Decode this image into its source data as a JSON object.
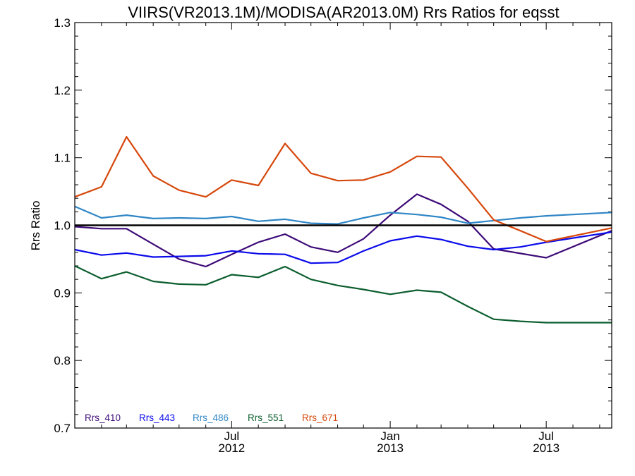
{
  "chart_data": {
    "type": "line",
    "title": "VIIRS(VR2013.1M)/MODISA(AR2013.0M)  Rrs Ratios for eqsst",
    "xlabel": "",
    "ylabel": "Rrs Ratio",
    "ylim": [
      0.7,
      1.3
    ],
    "xlim": [
      "2012-01-01",
      "2013-09-15"
    ],
    "x_ticks": [
      {
        "date": "2012-07-01",
        "label_line1": "Jul",
        "label_line2": "2012"
      },
      {
        "date": "2013-01-01",
        "label_line1": "Jan",
        "label_line2": "2013"
      },
      {
        "date": "2013-07-01",
        "label_line1": "Jul",
        "label_line2": "2013"
      }
    ],
    "y_ticks": [
      "0.7",
      "0.8",
      "0.9",
      "1.0",
      "1.1",
      "1.2",
      "1.3"
    ],
    "reference_line": 1.0,
    "grid": false,
    "legend_position": "bottom-left",
    "x": [
      "2012-01-01",
      "2012-02-01",
      "2012-03-01",
      "2012-04-01",
      "2012-05-01",
      "2012-06-01",
      "2012-07-01",
      "2012-08-01",
      "2012-09-01",
      "2012-10-01",
      "2012-11-01",
      "2012-12-01",
      "2013-01-01",
      "2013-02-01",
      "2013-03-01",
      "2013-04-01",
      "2013-05-01",
      "2013-06-01",
      "2013-07-01",
      "2013-07-15",
      "2013-08-01",
      "2013-09-15"
    ],
    "series": [
      {
        "name": "Rrs_410",
        "color": "#3d0a78",
        "x": [
          "2012-01-01",
          "2012-02-01",
          "2012-03-01",
          "2012-04-01",
          "2012-05-01",
          "2012-06-01",
          "2012-07-01",
          "2012-08-01",
          "2012-09-01",
          "2012-10-01",
          "2012-11-01",
          "2012-12-01",
          "2013-01-01",
          "2013-02-01",
          "2013-03-01",
          "2013-04-01",
          "2013-05-01",
          "2013-07-01",
          "2013-09-15"
        ],
        "values": [
          0.998,
          0.995,
          0.995,
          0.972,
          0.95,
          0.939,
          0.957,
          0.975,
          0.987,
          0.968,
          0.96,
          0.98,
          1.015,
          1.046,
          1.031,
          1.006,
          0.965,
          0.952,
          0.992
        ]
      },
      {
        "name": "Rrs_443",
        "color": "#0a0aeb",
        "x": [
          "2012-01-01",
          "2012-02-01",
          "2012-03-01",
          "2012-04-01",
          "2012-05-01",
          "2012-06-01",
          "2012-07-01",
          "2012-08-01",
          "2012-09-01",
          "2012-10-01",
          "2012-11-01",
          "2012-12-01",
          "2013-01-01",
          "2013-02-01",
          "2013-03-01",
          "2013-04-01",
          "2013-05-01",
          "2013-06-01",
          "2013-07-01",
          "2013-09-15"
        ],
        "values": [
          0.964,
          0.956,
          0.959,
          0.953,
          0.954,
          0.955,
          0.962,
          0.958,
          0.957,
          0.944,
          0.945,
          0.962,
          0.977,
          0.984,
          0.979,
          0.969,
          0.964,
          0.968,
          0.975,
          0.99
        ]
      },
      {
        "name": "Rrs_486",
        "color": "#2f86c6",
        "x": [
          "2012-01-01",
          "2012-02-01",
          "2012-03-01",
          "2012-04-01",
          "2012-05-01",
          "2012-06-01",
          "2012-07-01",
          "2012-08-01",
          "2012-09-01",
          "2012-10-01",
          "2012-11-01",
          "2012-12-01",
          "2013-01-01",
          "2013-02-01",
          "2013-03-01",
          "2013-04-01",
          "2013-05-01",
          "2013-06-01",
          "2013-07-01",
          "2013-09-15"
        ],
        "values": [
          1.028,
          1.011,
          1.015,
          1.01,
          1.011,
          1.01,
          1.013,
          1.006,
          1.009,
          1.003,
          1.002,
          1.011,
          1.019,
          1.016,
          1.012,
          1.003,
          1.007,
          1.011,
          1.014,
          1.019
        ]
      },
      {
        "name": "Rrs_551",
        "color": "#0b5e2e",
        "x": [
          "2012-01-01",
          "2012-02-01",
          "2012-03-01",
          "2012-04-01",
          "2012-05-01",
          "2012-06-01",
          "2012-07-01",
          "2012-08-01",
          "2012-09-01",
          "2012-10-01",
          "2012-11-01",
          "2012-12-01",
          "2013-01-01",
          "2013-02-01",
          "2013-03-01",
          "2013-04-01",
          "2013-05-01",
          "2013-06-01",
          "2013-07-01",
          "2013-09-15"
        ],
        "values": [
          0.94,
          0.921,
          0.931,
          0.917,
          0.913,
          0.912,
          0.927,
          0.923,
          0.939,
          0.92,
          0.911,
          0.905,
          0.898,
          0.904,
          0.901,
          0.88,
          0.861,
          0.858,
          0.856,
          0.856
        ]
      },
      {
        "name": "Rrs_671",
        "color": "#d6470b",
        "x": [
          "2012-01-01",
          "2012-02-01",
          "2012-03-01",
          "2012-04-01",
          "2012-05-01",
          "2012-06-01",
          "2012-07-01",
          "2012-08-01",
          "2012-09-01",
          "2012-10-01",
          "2012-11-01",
          "2012-12-01",
          "2013-01-01",
          "2013-02-01",
          "2013-03-01",
          "2013-04-01",
          "2013-05-01",
          "2013-06-01",
          "2013-07-01",
          "2013-09-15"
        ],
        "values": [
          1.042,
          1.057,
          1.131,
          1.073,
          1.052,
          1.042,
          1.067,
          1.059,
          1.121,
          1.077,
          1.066,
          1.067,
          1.079,
          1.102,
          1.101,
          1.055,
          1.008,
          0.992,
          0.976,
          0.996
        ]
      }
    ]
  }
}
